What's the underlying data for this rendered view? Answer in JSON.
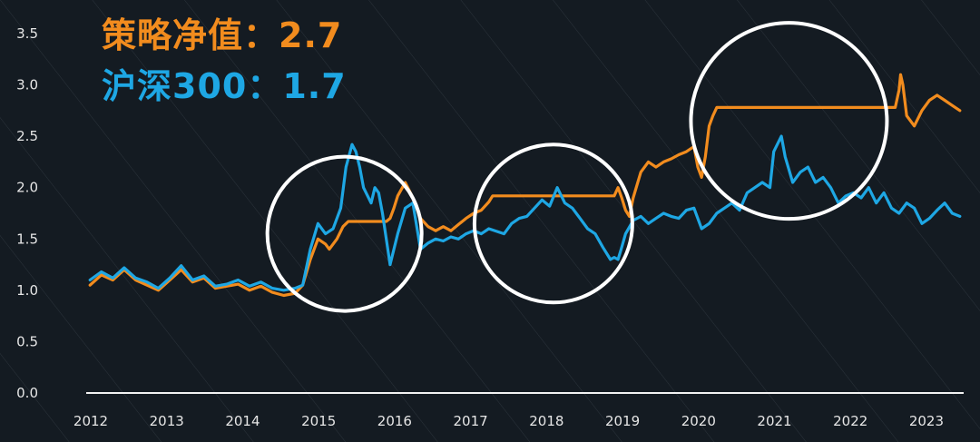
{
  "legend": [
    {
      "label": "策略净值",
      "sep": "：",
      "value": "2.7",
      "color": "#f28c1e"
    },
    {
      "label": "沪深300",
      "sep": "：",
      "value": "1.7",
      "color": "#1ea7e4"
    }
  ],
  "chart_data": {
    "type": "line",
    "title": "",
    "xlabel": "",
    "ylabel": "",
    "x_ticks": [
      "2012",
      "2013",
      "2014",
      "2015",
      "2016",
      "2017",
      "2018",
      "2019",
      "2020",
      "2021",
      "2022",
      "2023"
    ],
    "y_ticks": [
      "0.0",
      "0.5",
      "1.0",
      "1.5",
      "2.0",
      "2.5",
      "3.0",
      "3.5"
    ],
    "xlim": [
      2012.0,
      2023.55
    ],
    "ylim": [
      0,
      3.65
    ],
    "grid": false,
    "series": [
      {
        "name": "策略净值",
        "color": "#f28c1e",
        "x": [
          2012.05,
          2012.2,
          2012.35,
          2012.5,
          2012.65,
          2012.8,
          2012.95,
          2013.1,
          2013.25,
          2013.4,
          2013.55,
          2013.7,
          2013.85,
          2014.0,
          2014.15,
          2014.3,
          2014.45,
          2014.6,
          2014.75,
          2014.85,
          2014.95,
          2015.05,
          2015.15,
          2015.2,
          2015.3,
          2015.38,
          2015.45,
          2015.5,
          2015.6,
          2015.7,
          2015.8,
          2015.9,
          2015.95,
          2016.0,
          2016.05,
          2016.1,
          2016.2,
          2016.3,
          2016.4,
          2016.5,
          2016.6,
          2016.7,
          2016.8,
          2016.9,
          2017.0,
          2017.1,
          2017.2,
          2017.3,
          2017.35,
          2017.5,
          2017.7,
          2017.9,
          2018.1,
          2018.3,
          2018.5,
          2018.7,
          2018.9,
          2018.95,
          2019.0,
          2019.05,
          2019.1,
          2019.15,
          2019.2,
          2019.3,
          2019.4,
          2019.5,
          2019.6,
          2019.7,
          2019.8,
          2019.9,
          2020.0,
          2020.05,
          2020.1,
          2020.15,
          2020.2,
          2020.25,
          2020.3,
          2020.4,
          2020.6,
          2020.8,
          2021.0,
          2021.2,
          2021.4,
          2021.6,
          2021.8,
          2022.0,
          2022.2,
          2022.4,
          2022.6,
          2022.65,
          2022.7,
          2022.72,
          2022.75,
          2022.8,
          2022.9,
          2023.0,
          2023.1,
          2023.2,
          2023.3,
          2023.4,
          2023.5
        ],
        "values": [
          1.05,
          1.15,
          1.1,
          1.2,
          1.1,
          1.05,
          1.0,
          1.1,
          1.2,
          1.08,
          1.12,
          1.02,
          1.04,
          1.06,
          1.0,
          1.04,
          0.98,
          0.95,
          0.97,
          1.05,
          1.3,
          1.5,
          1.45,
          1.4,
          1.5,
          1.62,
          1.67,
          1.67,
          1.67,
          1.67,
          1.67,
          1.67,
          1.67,
          1.7,
          1.8,
          1.92,
          2.05,
          1.9,
          1.7,
          1.62,
          1.58,
          1.62,
          1.58,
          1.64,
          1.7,
          1.75,
          1.78,
          1.86,
          1.92,
          1.92,
          1.92,
          1.92,
          1.92,
          1.92,
          1.92,
          1.92,
          1.92,
          1.92,
          2.0,
          1.9,
          1.78,
          1.72,
          1.9,
          2.15,
          2.25,
          2.2,
          2.25,
          2.28,
          2.32,
          2.35,
          2.4,
          2.2,
          2.1,
          2.3,
          2.6,
          2.7,
          2.78,
          2.78,
          2.78,
          2.78,
          2.78,
          2.78,
          2.78,
          2.78,
          2.78,
          2.78,
          2.78,
          2.78,
          2.78,
          2.78,
          2.95,
          3.1,
          3.0,
          2.7,
          2.6,
          2.75,
          2.85,
          2.9,
          2.85,
          2.8,
          2.75
        ]
      },
      {
        "name": "沪深300",
        "color": "#1ea7e4",
        "x": [
          2012.05,
          2012.2,
          2012.35,
          2012.5,
          2012.65,
          2012.8,
          2012.95,
          2013.1,
          2013.25,
          2013.4,
          2013.55,
          2013.7,
          2013.85,
          2014.0,
          2014.15,
          2014.3,
          2014.45,
          2014.6,
          2014.75,
          2014.85,
          2014.95,
          2015.05,
          2015.15,
          2015.25,
          2015.35,
          2015.42,
          2015.5,
          2015.55,
          2015.6,
          2015.65,
          2015.75,
          2015.8,
          2015.85,
          2015.9,
          2016.0,
          2016.05,
          2016.1,
          2016.2,
          2016.3,
          2016.4,
          2016.5,
          2016.6,
          2016.7,
          2016.8,
          2016.9,
          2017.0,
          2017.1,
          2017.2,
          2017.3,
          2017.5,
          2017.6,
          2017.7,
          2017.8,
          2017.9,
          2018.0,
          2018.1,
          2018.2,
          2018.3,
          2018.4,
          2018.5,
          2018.6,
          2018.7,
          2018.8,
          2018.9,
          2018.95,
          2019.0,
          2019.05,
          2019.1,
          2019.2,
          2019.3,
          2019.4,
          2019.5,
          2019.6,
          2019.7,
          2019.8,
          2019.9,
          2020.0,
          2020.1,
          2020.2,
          2020.3,
          2020.4,
          2020.5,
          2020.6,
          2020.7,
          2020.8,
          2020.9,
          2021.0,
          2021.05,
          2021.15,
          2021.2,
          2021.3,
          2021.4,
          2021.5,
          2021.6,
          2021.7,
          2021.8,
          2021.9,
          2022.0,
          2022.1,
          2022.2,
          2022.3,
          2022.4,
          2022.5,
          2022.6,
          2022.7,
          2022.8,
          2022.9,
          2023.0,
          2023.1,
          2023.2,
          2023.3,
          2023.4,
          2023.5
        ],
        "values": [
          1.1,
          1.18,
          1.12,
          1.22,
          1.12,
          1.08,
          1.02,
          1.12,
          1.24,
          1.1,
          1.14,
          1.04,
          1.06,
          1.1,
          1.04,
          1.08,
          1.02,
          1.0,
          1.02,
          1.05,
          1.4,
          1.65,
          1.55,
          1.6,
          1.8,
          2.2,
          2.42,
          2.35,
          2.2,
          2.0,
          1.85,
          2.0,
          1.95,
          1.75,
          1.25,
          1.4,
          1.55,
          1.8,
          1.85,
          1.4,
          1.46,
          1.5,
          1.48,
          1.52,
          1.5,
          1.55,
          1.58,
          1.55,
          1.6,
          1.55,
          1.65,
          1.7,
          1.72,
          1.8,
          1.88,
          1.82,
          2.0,
          1.85,
          1.8,
          1.7,
          1.6,
          1.55,
          1.42,
          1.3,
          1.32,
          1.3,
          1.42,
          1.55,
          1.68,
          1.72,
          1.65,
          1.7,
          1.75,
          1.72,
          1.7,
          1.78,
          1.8,
          1.6,
          1.65,
          1.75,
          1.8,
          1.85,
          1.78,
          1.95,
          2.0,
          2.05,
          2.0,
          2.35,
          2.5,
          2.3,
          2.05,
          2.15,
          2.2,
          2.05,
          2.1,
          2.0,
          1.85,
          1.92,
          1.95,
          1.9,
          2.0,
          1.85,
          1.95,
          1.8,
          1.75,
          1.85,
          1.8,
          1.65,
          1.7,
          1.78,
          1.85,
          1.75,
          1.72
        ]
      }
    ],
    "annotations": [
      {
        "shape": "circle",
        "x": 2015.4,
        "y": 1.55
      },
      {
        "shape": "circle",
        "x": 2018.15,
        "y": 1.65
      },
      {
        "shape": "circle",
        "x": 2021.25,
        "y": 2.65
      }
    ]
  }
}
